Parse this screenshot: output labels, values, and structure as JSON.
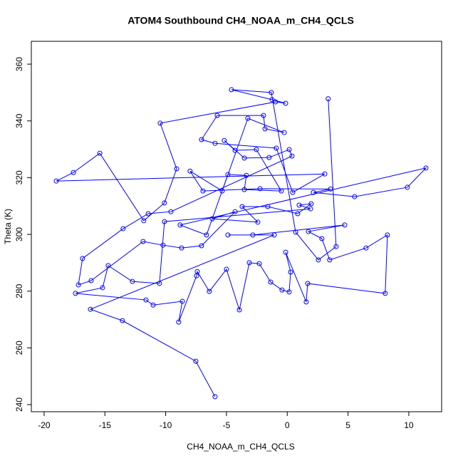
{
  "chart_data": {
    "type": "scatter",
    "title": "ATOM4 Southbound CH4_NOAA_m_CH4_QCLS",
    "x_label": "CH4_NOAA_m_CH4_QCLS",
    "y_label": "Theta (K)",
    "connect_points": true,
    "series": [
      {
        "color": "#0000ff",
        "x": [
          3.37,
          4.02,
          2.56,
          0.69,
          -1.31,
          -4.59,
          -1.25,
          -0.13,
          -0.96,
          -10.45,
          -9.1,
          -10.1,
          -11.8,
          -15.42,
          -17.59,
          -19.0,
          3.09,
          0.45,
          -0.9,
          -5.94,
          -7.05,
          -5.76,
          -1.95,
          -1.83,
          -0.25,
          -3.24,
          -5.35,
          -7.99,
          -6.93,
          -2.24,
          3.56,
          2.15,
          5.54,
          9.88,
          11.41,
          -8.81,
          -6.64,
          -4.88,
          -3.36,
          -3.53,
          -0.49,
          -2.54,
          -4.29,
          -5.18,
          -3.53,
          -1.49,
          0.16,
          0.39,
          -9.57,
          -11.44,
          -13.5,
          -16.84,
          -17.18,
          -16.13,
          -11.86,
          -10.22,
          -8.69,
          -7.05,
          -4.29,
          -6.17,
          -2.42,
          -3.71,
          -1.6,
          0.86,
          1.97,
          0.98,
          1.92,
          -10.1,
          -10.51,
          -12.74,
          -14.73,
          -15.19,
          -17.42,
          -11.62,
          -11.03,
          -8.63,
          -8.93,
          -7.46,
          -7.4,
          -6.41,
          -5.0,
          -3.94,
          -3.12,
          -2.3,
          -1.36,
          -0.43,
          0.16,
          0.28,
          -0.13,
          1.56,
          1.68,
          8.06,
          8.24,
          6.48,
          3.49,
          2.85,
          1.74,
          4.73,
          -2.83,
          -4.88,
          -1.07,
          -16.19,
          -13.56,
          -7.52,
          -5.94
        ],
        "values": [
          347.8,
          295.7,
          291.0,
          300.8,
          350.0,
          351.0,
          347.5,
          346.2,
          346.7,
          339.2,
          323.1,
          311.1,
          304.8,
          328.6,
          321.8,
          318.8,
          321.3,
          314.8,
          330.4,
          332.1,
          333.4,
          341.9,
          341.9,
          337.2,
          335.9,
          340.9,
          315.3,
          322.3,
          315.3,
          316.1,
          316.0,
          314.8,
          313.3,
          316.6,
          323.4,
          303.3,
          299.8,
          321.1,
          320.8,
          315.8,
          315.3,
          329.9,
          329.6,
          333.1,
          326.9,
          327.1,
          329.9,
          327.6,
          308.0,
          307.3,
          302.0,
          291.5,
          282.2,
          283.7,
          297.5,
          296.2,
          295.2,
          296.0,
          308.0,
          305.5,
          304.3,
          309.8,
          309.8,
          307.3,
          310.8,
          310.3,
          309.0,
          304.5,
          282.7,
          283.4,
          289.0,
          281.2,
          279.2,
          276.9,
          275.1,
          276.4,
          269.1,
          285.4,
          286.9,
          279.9,
          287.7,
          273.4,
          290.0,
          289.7,
          283.2,
          280.4,
          279.7,
          286.7,
          293.7,
          276.2,
          282.7,
          279.2,
          299.8,
          295.2,
          291.0,
          298.5,
          301.0,
          303.3,
          299.8,
          299.8,
          299.8,
          273.6,
          269.6,
          255.3,
          242.8
        ]
      }
    ],
    "xlim": [
      -21.05,
      12.7
    ],
    "ylim": [
      237.5,
      368.05
    ],
    "xticks": [
      -20,
      -15,
      -10,
      -5,
      0,
      5,
      10
    ],
    "yticks": [
      240,
      260,
      280,
      300,
      320,
      340,
      360
    ]
  }
}
